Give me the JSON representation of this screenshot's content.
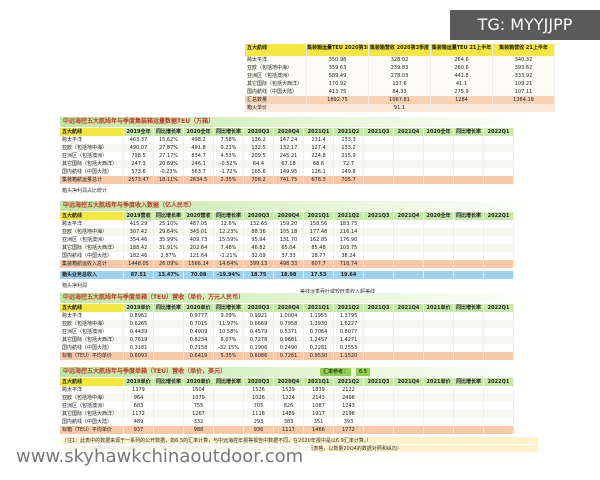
{
  "watermark_top": "TG: MYYJJPP",
  "watermark_bottom": "www.skyhawkchinaoutdoor.com",
  "summary": {
    "header": [
      "五大航线",
      "集装箱运量TEU 2020第3季度",
      "集装箱营收 2020第3季度",
      "集装箱运量TEU 21上半年",
      "集装箱营收 21上半年"
    ],
    "rows": [
      [
        "跨太平洋",
        "350.98",
        "328.02",
        "264.6",
        "340.32"
      ],
      [
        "亚欧（包括地中海）",
        "359.63",
        "239.83",
        "260.6",
        "393.62"
      ],
      [
        "亚洲区（包括澳洲）",
        "589.49",
        "278.03",
        "441.8",
        "333.92"
      ],
      [
        "其它国际（包括大西洋）",
        "170.92",
        "137.6",
        "41.1",
        "109.21"
      ],
      [
        "国内航线（中国大陆）",
        "413.75",
        "84.33",
        "275.9",
        "107.11"
      ],
      [
        "汇总数量",
        "1892.75",
        "1067.81",
        "1284",
        "1364.18"
      ],
      [
        "箱火单价",
        null,
        "91.1",
        null,
        null
      ]
    ]
  },
  "sections": [
    {
      "title": "中远海控五大航线年与季度集装箱运量数据TEU（万箱）",
      "header": [
        "五大航线",
        "2019全年",
        "同比增长率",
        "2020全年",
        "同比增长率",
        "2020Q3",
        "2020Q4",
        "2021Q1",
        "2021Q2",
        "2021Q3",
        "2021Q4",
        "2020全年",
        "同比增长率",
        "2022Q1"
      ],
      "rows": [
        [
          "跨太平洋",
          "463.37",
          "15.62%",
          "498.2",
          "7.58%",
          "136.2",
          "147.24",
          "131.4",
          "133.3",
          null,
          null,
          null,
          null,
          null
        ],
        [
          "亚欧（包括地中海）",
          "490.07",
          "27.87%",
          "491.8",
          "0.21%",
          "132.5",
          "132.17",
          "127.4",
          "133.2",
          null,
          null,
          null,
          null,
          null
        ],
        [
          "亚洲区（包括澳洲）",
          "798.5",
          "27.17%",
          "834.7",
          "4.53%",
          "209.5",
          "245.21",
          "224.8",
          "215.9",
          null,
          null,
          null,
          null,
          null
        ],
        [
          "其它国际（包括大西洋）",
          "247.3",
          "20.69%",
          "246.1",
          "-0.52%",
          "64.4",
          "67.18",
          "68.6",
          "72.7",
          null,
          null,
          null,
          null,
          null
        ],
        [
          "国内航线（中国大陆）",
          "573.6",
          "-0.23%",
          "563.7",
          "-1.72%",
          "165.6",
          "149.95",
          "126.1",
          "149.8",
          null,
          null,
          null,
          null,
          null
        ],
        [
          "集装箱航运量总计",
          "2573.47",
          "18.11%",
          "2634.5",
          "2.35%",
          "708.2",
          "741.75",
          "678.3",
          "705.7",
          null,
          null,
          null,
          null,
          null
        ]
      ],
      "footnotes": [
        "箱头净利润占比统计"
      ]
    },
    {
      "title": "中远海控五大航线年与季度收入数据（亿人民币）",
      "header": [
        "五大航线",
        "2019营收",
        "同比增长率",
        "2020营收",
        "同比增长率",
        "2020Q3",
        "2020Q4",
        "2021Q1",
        "2021Q2",
        "2021Q3",
        "2021Q4",
        "2020全年",
        "同比增长率",
        "2022Q1"
      ],
      "rows": [
        [
          "跨太平洋",
          "415.29",
          "25.10%",
          "487.05",
          "12.6%",
          "132.65",
          "159.20",
          "158.56",
          "183.75",
          null,
          null,
          null,
          null,
          null
        ],
        [
          "亚欧（包括地中海）",
          "307.42",
          "29.64%",
          "345.01",
          "12.23%",
          "88.36",
          "105.18",
          "177.48",
          "216.14",
          null,
          null,
          null,
          null,
          null
        ],
        [
          "亚洲区（包括澳洲）",
          "354.46",
          "35.99%",
          "409.73",
          "15.59%",
          "95.94",
          "131.70",
          "162.85",
          "176.90",
          null,
          null,
          null,
          null,
          null
        ],
        [
          "其它国际（包括大西洋）",
          "188.42",
          "31.91%",
          "202.64",
          "7.48%",
          "46.82",
          "65.04",
          "85.46",
          "103.75",
          null,
          null,
          null,
          null,
          null
        ],
        [
          "国内航线（中国大陆）",
          "182.46",
          "2.87%",
          "121.64",
          "-1.21%",
          "32.09",
          "37.33",
          "28.77",
          "38.24",
          null,
          null,
          null,
          null,
          null
        ],
        [
          "集装箱航运收入总计",
          "1448.05",
          "26.09%",
          "1566.14",
          "14.64%",
          "399.13",
          "498.33",
          "607.7",
          "718.74",
          null,
          null,
          null,
          null,
          null
        ]
      ],
      "highlight_row": [
        "箱头业务总收入",
        "87.51",
        "13.47%",
        "70.08",
        "-19.94%",
        "18.75",
        "18.98",
        "17.53",
        "19.64",
        null,
        null,
        null,
        null,
        null
      ],
      "footnotes": [
        "箱头净利润",
        "美线淡季吞吐或较旺季收入超美线"
      ]
    },
    {
      "title": "中远海控五大航线年与季度单箱（TEU）营收（单价，万元人民币）",
      "header": [
        "五大航线",
        "2019单价",
        "同比增长率",
        "2020单价",
        "同比增长率",
        "2020Q3",
        "2020Q4",
        "2021Q1",
        "2021Q2",
        "2021Q3",
        "2021Q4",
        "2021单价",
        "同比增长率",
        "2022Q1"
      ],
      "rows": [
        [
          "跨太平洋",
          "0.8962",
          null,
          "0.9777",
          "9.09%",
          "0.9921",
          "1.0004",
          "1.1955",
          "1.3795",
          null,
          null,
          null,
          null,
          null
        ],
        [
          "亚欧（包括地中海）",
          "0.6265",
          null,
          "0.7015",
          "11.97%",
          "0.6669",
          "0.7958",
          "1.3930",
          "1.6227",
          null,
          null,
          null,
          null,
          null
        ],
        [
          "亚洲区（包括澳洲）",
          "0.4439",
          null,
          "0.4909",
          "10.58%",
          "0.4579",
          "0.5371",
          "0.7064",
          "0.8077",
          null,
          null,
          null,
          null,
          null
        ],
        [
          "其它国际（包括大西洋）",
          "0.7619",
          null,
          "0.8234",
          "8.07%",
          "0.7278",
          "0.9681",
          "1.2457",
          "1.4271",
          null,
          null,
          null,
          null,
          null
        ],
        [
          "国内航线（中国大陆）",
          "0.3181",
          null,
          "0.2158",
          "-32.15%",
          "0.1906",
          "0.2490",
          "0.2281",
          "0.2553",
          null,
          null,
          null,
          null,
          null
        ],
        [
          "标箱（TEU）平均单价",
          "0.6093",
          null,
          "0.6419",
          "5.35%",
          "0.6086",
          "0.7261",
          "0.9530",
          "1.1520",
          null,
          null,
          null,
          null,
          null
        ]
      ]
    },
    {
      "title": "中远海控五大航线年与季度单箱（TEU）营收（单价，美元）",
      "rate_label": "汇率参考：",
      "rate": "6.5",
      "header": [
        "五大航线",
        "2019单价",
        "同比增长率",
        "2020单价",
        "同比增长率",
        "2020Q3",
        "2020Q4",
        "2021Q1",
        "2021Q2",
        "2021Q3",
        "2021Q4",
        "2021单价",
        "同比增长率",
        "2022Q1"
      ],
      "rows": [
        [
          "跨太平洋",
          "1379",
          null,
          "1504",
          null,
          "1526",
          "1539",
          "1839",
          "2122",
          null,
          null,
          null,
          null,
          null
        ],
        [
          "亚欧（包括地中海）",
          "964",
          null,
          "1079",
          null,
          "1026",
          "1224",
          "2143",
          "2496",
          null,
          null,
          null,
          null,
          null
        ],
        [
          "亚洲区（包括澳洲）",
          "683",
          null,
          "755",
          null,
          "705",
          "826",
          "1087",
          "1243",
          null,
          null,
          null,
          null,
          null
        ],
        [
          "其它国际（包括大西洋）",
          "1172",
          null,
          "1267",
          null,
          "1118",
          "1489",
          "1917",
          "2196",
          null,
          null,
          null,
          null,
          null
        ],
        [
          "国内航线（中国大陆）",
          "489",
          null,
          "332",
          null,
          "293",
          "383",
          "351",
          "393",
          null,
          null,
          null,
          null,
          null
        ],
        [
          "标箱（TEU）平均单价",
          "937",
          null,
          "988",
          null,
          "936",
          "1117",
          "1466",
          "1772",
          null,
          null,
          null,
          null,
          null
        ]
      ],
      "footnotes": [
        "（注1：此表中的数据来源于一系列的公开数据，如6.5的汇率计算，与中远海控年报等报告中数据不同，在2020年报中是以6.9汇率计算。）",
        "（注2：2020年报对航线营收做出了两种不同的数据，见20年报第17页下表，以前至20年是下表，本表采用20页表格，以数量20Q4的数据对照和纵向）"
      ]
    }
  ]
}
